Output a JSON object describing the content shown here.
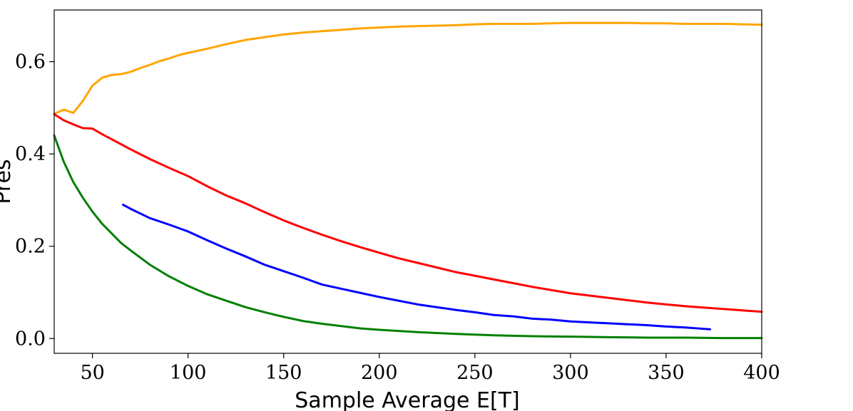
{
  "chart_data": {
    "type": "line",
    "title": "",
    "xlabel": "Sample Average E[T]",
    "ylabel": "Pres",
    "xlim": [
      30,
      400
    ],
    "ylim": [
      -0.032,
      0.712
    ],
    "xticks": [
      50,
      100,
      150,
      200,
      250,
      300,
      350,
      400
    ],
    "yticks": [
      0.0,
      0.2,
      0.4,
      0.6
    ],
    "xtick_labels": [
      "50",
      "100",
      "150",
      "200",
      "250",
      "300",
      "350",
      "400"
    ],
    "ytick_labels": [
      "0.0",
      "0.2",
      "0.4",
      "0.6"
    ],
    "grid": false,
    "legend": "none",
    "series": [
      {
        "color": "#FFA500",
        "x": [
          30,
          35,
          40,
          45,
          50,
          55,
          60,
          65,
          70,
          75,
          80,
          85,
          90,
          95,
          100,
          110,
          120,
          130,
          140,
          150,
          160,
          170,
          180,
          190,
          200,
          210,
          220,
          230,
          240,
          250,
          260,
          270,
          280,
          290,
          300,
          310,
          320,
          330,
          340,
          350,
          360,
          370,
          380,
          390,
          400
        ],
        "y": [
          0.487,
          0.496,
          0.489,
          0.515,
          0.548,
          0.565,
          0.571,
          0.573,
          0.578,
          0.586,
          0.593,
          0.601,
          0.607,
          0.614,
          0.619,
          0.628,
          0.638,
          0.647,
          0.653,
          0.659,
          0.663,
          0.666,
          0.669,
          0.672,
          0.674,
          0.676,
          0.677,
          0.678,
          0.679,
          0.681,
          0.682,
          0.682,
          0.682,
          0.683,
          0.684,
          0.684,
          0.684,
          0.684,
          0.683,
          0.683,
          0.682,
          0.682,
          0.682,
          0.681,
          0.68
        ]
      },
      {
        "color": "#FF0000",
        "x": [
          30,
          35,
          40,
          45,
          50,
          55,
          60,
          70,
          80,
          90,
          100,
          110,
          120,
          130,
          140,
          150,
          160,
          170,
          180,
          190,
          200,
          210,
          220,
          230,
          240,
          250,
          260,
          270,
          280,
          290,
          300,
          310,
          320,
          330,
          340,
          350,
          360,
          370,
          380,
          390,
          400
        ],
        "y": [
          0.486,
          0.473,
          0.464,
          0.456,
          0.455,
          0.443,
          0.432,
          0.41,
          0.389,
          0.37,
          0.352,
          0.33,
          0.31,
          0.293,
          0.274,
          0.256,
          0.24,
          0.225,
          0.211,
          0.198,
          0.186,
          0.174,
          0.164,
          0.154,
          0.144,
          0.136,
          0.128,
          0.12,
          0.112,
          0.105,
          0.098,
          0.093,
          0.088,
          0.083,
          0.078,
          0.074,
          0.07,
          0.067,
          0.064,
          0.061,
          0.058
        ]
      },
      {
        "color": "#0000FF",
        "x": [
          66,
          70,
          80,
          90,
          100,
          110,
          120,
          130,
          140,
          150,
          160,
          170,
          180,
          190,
          200,
          210,
          220,
          230,
          240,
          250,
          260,
          270,
          280,
          290,
          300,
          310,
          320,
          330,
          340,
          350,
          360,
          373
        ],
        "y": [
          0.29,
          0.281,
          0.261,
          0.247,
          0.232,
          0.213,
          0.195,
          0.178,
          0.16,
          0.146,
          0.132,
          0.117,
          0.108,
          0.099,
          0.09,
          0.082,
          0.074,
          0.068,
          0.062,
          0.057,
          0.051,
          0.048,
          0.043,
          0.041,
          0.037,
          0.035,
          0.033,
          0.031,
          0.029,
          0.026,
          0.024,
          0.02
        ]
      },
      {
        "color": "#008000",
        "x": [
          30,
          35,
          40,
          45,
          50,
          55,
          60,
          65,
          70,
          80,
          90,
          100,
          110,
          120,
          130,
          140,
          150,
          160,
          170,
          180,
          190,
          200,
          220,
          240,
          260,
          280,
          300,
          320,
          340,
          360,
          380,
          400
        ],
        "y": [
          0.44,
          0.383,
          0.339,
          0.305,
          0.275,
          0.249,
          0.228,
          0.207,
          0.191,
          0.16,
          0.135,
          0.114,
          0.096,
          0.082,
          0.068,
          0.057,
          0.047,
          0.038,
          0.032,
          0.027,
          0.022,
          0.019,
          0.014,
          0.01,
          0.007,
          0.005,
          0.004,
          0.003,
          0.002,
          0.002,
          0.001,
          0.001
        ]
      }
    ]
  }
}
